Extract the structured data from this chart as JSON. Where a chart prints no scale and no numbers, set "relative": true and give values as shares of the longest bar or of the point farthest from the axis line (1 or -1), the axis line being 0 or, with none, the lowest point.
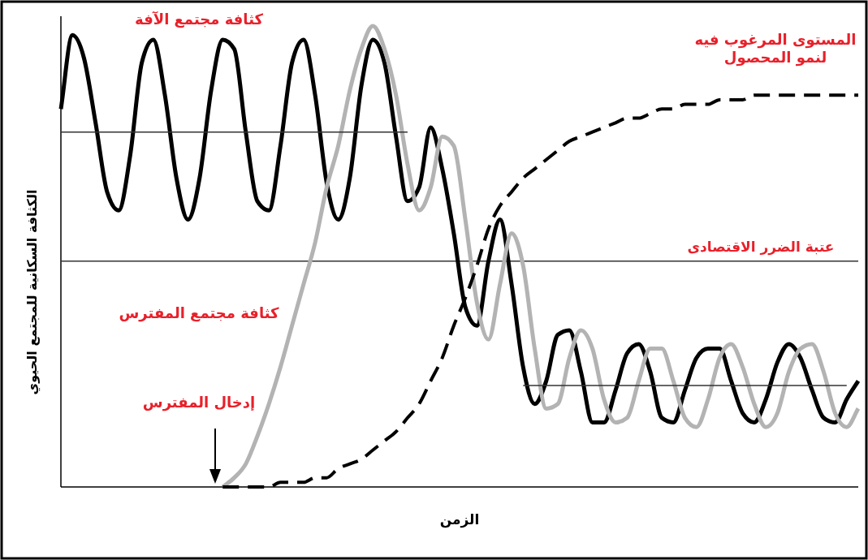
{
  "chart_data": {
    "type": "line",
    "relative": true,
    "xlabel": "الزمن",
    "ylabel": "الكثافة السكانية للمجتمع الحيوي",
    "categories": [
      null,
      null,
      null,
      null,
      null,
      null,
      null,
      null,
      null,
      null,
      null,
      null,
      null,
      null,
      null,
      null,
      null,
      null,
      null,
      null,
      null,
      null,
      null,
      null,
      null,
      null,
      null,
      null,
      null,
      null,
      null,
      null,
      null,
      null,
      null,
      null,
      null,
      null,
      null,
      null,
      null,
      null,
      null,
      null,
      null,
      null,
      null,
      null,
      null,
      null,
      null,
      null,
      null,
      null,
      null,
      null,
      null,
      null,
      null,
      null,
      null,
      null,
      null,
      null,
      null,
      null,
      null,
      null,
      null,
      null
    ],
    "series": [
      {
        "name": "كثافة مجتمع الآفة",
        "color": "#000000",
        "values": [
          0.82,
          0.98,
          0.93,
          0.79,
          0.64,
          0.6,
          0.72,
          0.92,
          0.97,
          0.85,
          0.67,
          0.58,
          0.67,
          0.86,
          0.97,
          0.95,
          0.77,
          0.62,
          0.6,
          0.74,
          0.92,
          0.97,
          0.85,
          0.66,
          0.58,
          0.67,
          0.87,
          0.97,
          0.92,
          0.76,
          0.62,
          0.65,
          0.78,
          0.69,
          0.55,
          0.39,
          0.35,
          0.49,
          0.58,
          0.44,
          0.26,
          0.18,
          0.23,
          0.33,
          0.34,
          0.25,
          0.14,
          0.14,
          0.21,
          0.29,
          0.31,
          0.25,
          0.15,
          0.14,
          0.21,
          0.28,
          0.3,
          0.3,
          0.23,
          0.16,
          0.14,
          0.19,
          0.27,
          0.31,
          0.28,
          0.21,
          0.15,
          0.14,
          0.19,
          0.23
        ]
      },
      {
        "name": "كثافة مجتمع المفترس",
        "color": "#b3b3b3",
        "values": [
          null,
          null,
          null,
          null,
          null,
          null,
          null,
          null,
          null,
          null,
          null,
          null,
          null,
          null,
          0,
          0.02,
          0.05,
          0.11,
          0.18,
          0.26,
          0.35,
          0.44,
          0.53,
          0.65,
          0.74,
          0.86,
          0.95,
          1.0,
          0.95,
          0.85,
          0.7,
          0.6,
          0.65,
          0.76,
          0.74,
          0.58,
          0.4,
          0.32,
          0.44,
          0.55,
          0.48,
          0.3,
          0.17,
          0.18,
          0.28,
          0.34,
          0.3,
          0.19,
          0.14,
          0.15,
          0.23,
          0.3,
          0.3,
          0.23,
          0.15,
          0.13,
          0.19,
          0.28,
          0.31,
          0.26,
          0.18,
          0.13,
          0.16,
          0.25,
          0.3,
          0.31,
          0.25,
          0.16,
          0.13,
          0.17
        ]
      },
      {
        "name": "المستوى المرغوب فيه\nلنمو المحصول",
        "color": "#000000",
        "line_style": "dashed",
        "values": [
          null,
          null,
          null,
          null,
          null,
          null,
          null,
          null,
          null,
          null,
          null,
          null,
          null,
          null,
          0,
          0,
          0,
          0,
          0,
          0.01,
          0.01,
          0.01,
          0.02,
          0.02,
          0.04,
          0.05,
          0.06,
          0.08,
          0.1,
          0.12,
          0.15,
          0.18,
          0.23,
          0.28,
          0.35,
          0.41,
          0.48,
          0.56,
          0.61,
          0.64,
          0.67,
          0.69,
          0.71,
          0.73,
          0.75,
          0.76,
          0.77,
          0.78,
          0.79,
          0.8,
          0.8,
          0.81,
          0.82,
          0.82,
          0.83,
          0.83,
          0.83,
          0.84,
          0.84,
          0.84,
          0.85,
          0.85,
          0.85,
          0.85,
          0.85,
          0.85,
          0.85,
          0.85,
          0.85,
          0.85
        ]
      },
      {
        "color": "#333333",
        "values": [
          0.77,
          0.77,
          0.77,
          0.77,
          0.77,
          0.77,
          0.77,
          0.77,
          0.77,
          0.77,
          0.77,
          0.77,
          0.77,
          0.77,
          0.77,
          0.77,
          0.77,
          0.77,
          0.77,
          0.77,
          0.77,
          0.77,
          0.77,
          0.77,
          0.77,
          0.77,
          0.77,
          0.77,
          0.77,
          0.77,
          0.77,
          null,
          null,
          null,
          null,
          null,
          null,
          null,
          null,
          null,
          null,
          null,
          null,
          null,
          null,
          null,
          null,
          null,
          null,
          null,
          null,
          null,
          null,
          null,
          null,
          null,
          null,
          null,
          null,
          null,
          null,
          null,
          null,
          null,
          null,
          null,
          null,
          null,
          null,
          null
        ]
      },
      {
        "color": "#333333",
        "values": [
          null,
          null,
          null,
          null,
          null,
          null,
          null,
          null,
          null,
          null,
          null,
          null,
          null,
          null,
          null,
          null,
          null,
          null,
          null,
          null,
          null,
          null,
          null,
          null,
          null,
          null,
          null,
          null,
          null,
          null,
          null,
          null,
          null,
          null,
          null,
          null,
          null,
          null,
          null,
          null,
          0.22,
          0.22,
          0.22,
          0.22,
          0.22,
          0.22,
          0.22,
          0.22,
          0.22,
          0.22,
          0.22,
          0.22,
          0.22,
          0.22,
          0.22,
          0.22,
          0.22,
          0.22,
          0.22,
          0.22,
          0.22,
          0.22,
          0.22,
          0.22,
          0.22,
          0.22,
          0.22,
          0.22,
          0.22,
          null
        ]
      }
    ],
    "ref_lines": [
      {
        "axis": "y",
        "value": 0.49,
        "label": "عتبة الضرر الاقتصادى",
        "color": "#333333"
      }
    ],
    "annotations": [
      "إدخال المفترس"
    ]
  }
}
